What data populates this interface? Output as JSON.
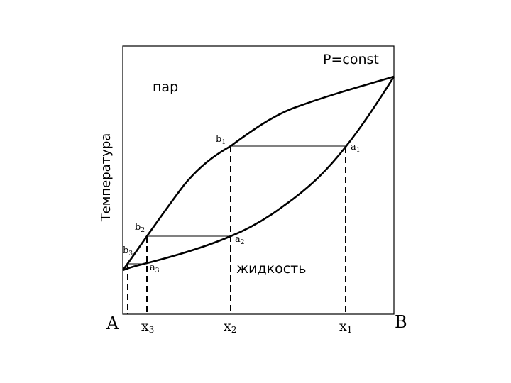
{
  "diagram": {
    "condition": "P=const",
    "vapor_label": "пар",
    "liquid_label": "жидкость",
    "y_axis_label": "Температура",
    "left_component": "A",
    "right_component": "B",
    "points": [
      {
        "letter": "b",
        "index": "1"
      },
      {
        "letter": "a",
        "index": "1"
      },
      {
        "letter": "b",
        "index": "2"
      },
      {
        "letter": "a",
        "index": "2"
      },
      {
        "letter": "b",
        "index": "3"
      },
      {
        "letter": "a",
        "index": "3"
      }
    ],
    "compositions": [
      {
        "letter": "x",
        "index": "3"
      },
      {
        "letter": "x",
        "index": "2"
      },
      {
        "letter": "x",
        "index": "1"
      }
    ]
  }
}
